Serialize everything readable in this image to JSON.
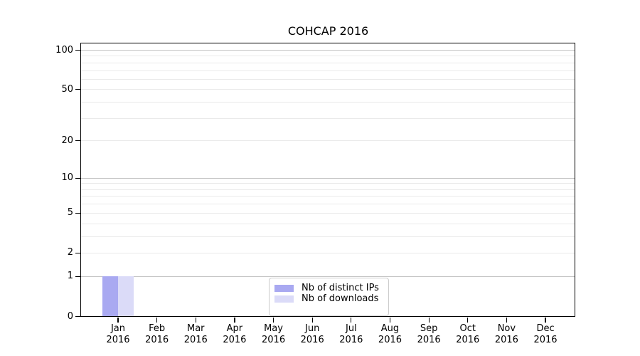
{
  "title": "COHCAP 2016",
  "colors": {
    "background": "#ffffff",
    "axis": "#000000",
    "text": "#000000",
    "grid_major": "#c4c4c4",
    "grid_minor": "#eaeaea",
    "legend_border": "#cccccc",
    "series_distinct_ips": "#a9a9f1",
    "series_downloads": "#dbdbf8"
  },
  "chart_data": {
    "type": "bar",
    "title": "COHCAP 2016",
    "categories": [
      "Jan 2016",
      "Feb 2016",
      "Mar 2016",
      "Apr 2016",
      "May 2016",
      "Jun 2016",
      "Jul 2016",
      "Aug 2016",
      "Sep 2016",
      "Oct 2016",
      "Nov 2016",
      "Dec 2016"
    ],
    "months": [
      "Jan",
      "Feb",
      "Mar",
      "Apr",
      "May",
      "Jun",
      "Jul",
      "Aug",
      "Sep",
      "Oct",
      "Nov",
      "Dec"
    ],
    "year_line": "2016",
    "series": [
      {
        "name": "Nb of distinct IPs",
        "color": "#a9a9f1",
        "values": [
          1,
          0,
          0,
          0,
          0,
          0,
          0,
          0,
          0,
          0,
          0,
          0
        ]
      },
      {
        "name": "Nb of downloads",
        "color": "#dbdbf8",
        "values": [
          1,
          0,
          0,
          0,
          0,
          0,
          0,
          0,
          0,
          0,
          0,
          0
        ]
      }
    ],
    "xlabel": "",
    "ylabel": "",
    "yscale": "log1p",
    "ylim": [
      0,
      112
    ],
    "yticks": [
      0,
      1,
      2,
      5,
      10,
      20,
      50,
      100
    ],
    "ytick_decades": [
      1,
      10,
      100
    ],
    "minor_gridlines": [
      3,
      4,
      6,
      7,
      8,
      9,
      30,
      40,
      60,
      70,
      80,
      90
    ],
    "grid": "horizontal",
    "legend_position": "lower center"
  }
}
